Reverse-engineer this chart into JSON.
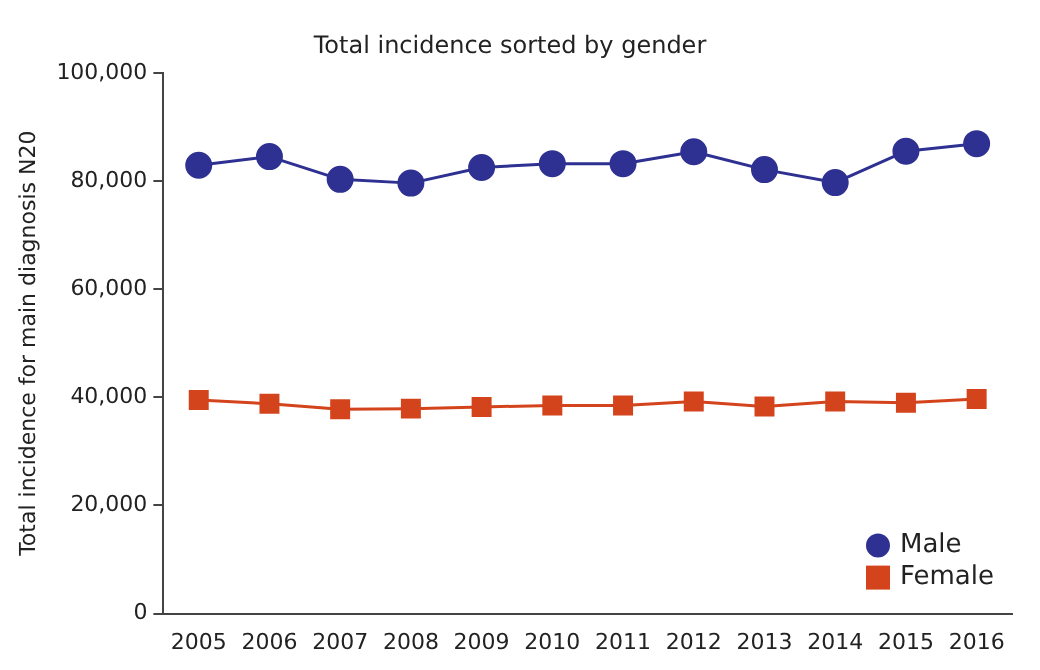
{
  "chart_data": {
    "type": "line",
    "title": "Total incidence sorted by gender",
    "ylabel": "Total incidence for main diagnosis N20",
    "categories": [
      "2005",
      "2006",
      "2007",
      "2008",
      "2009",
      "2010",
      "2011",
      "2012",
      "2013",
      "2014",
      "2015",
      "2016"
    ],
    "series": [
      {
        "name": "Male",
        "color": "#2e3192",
        "marker": "circle",
        "values": [
          82900,
          84500,
          80300,
          79600,
          82500,
          83200,
          83200,
          85400,
          82100,
          79700,
          85500,
          86900
        ]
      },
      {
        "name": "Female",
        "color": "#d4441c",
        "marker": "square",
        "values": [
          39500,
          38800,
          37800,
          37900,
          38200,
          38500,
          38500,
          39200,
          38300,
          39200,
          39000,
          39700
        ]
      }
    ],
    "ylim": [
      0,
      100000
    ],
    "yticks": [
      {
        "value": 0,
        "label": "0"
      },
      {
        "value": 20000,
        "label": "20,000"
      },
      {
        "value": 40000,
        "label": "40,000"
      },
      {
        "value": 60000,
        "label": "60,000"
      },
      {
        "value": 80000,
        "label": "80,000"
      },
      {
        "value": 100000,
        "label": "100,000"
      }
    ],
    "grid": false,
    "legend": "bottom right",
    "line_style": "solid"
  }
}
